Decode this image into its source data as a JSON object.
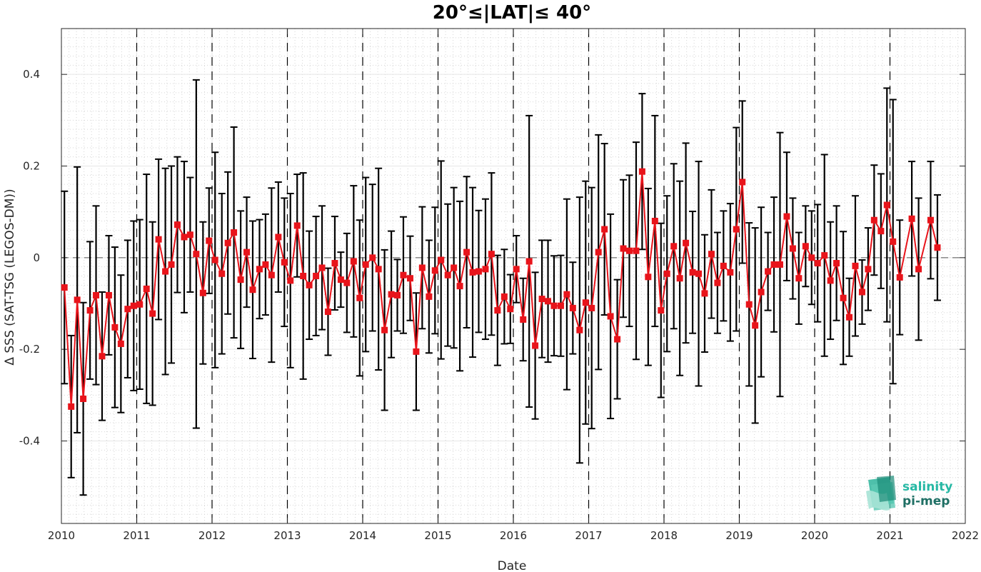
{
  "chart_data": {
    "type": "line",
    "title": "20°≤|LAT|≤ 40°",
    "xlabel": "Date",
    "ylabel": "Δ SSS (SAT-TSG (LEGOS-DM))",
    "xlim": [
      2010,
      2022
    ],
    "ylim": [
      -0.58,
      0.5
    ],
    "x_ticks": [
      2010,
      2011,
      2012,
      2013,
      2014,
      2015,
      2016,
      2017,
      2018,
      2019,
      2020,
      2021,
      2022
    ],
    "y_ticks": [
      -0.4,
      -0.2,
      0,
      0.2,
      0.4
    ],
    "y_tick_labels": [
      "-0.4",
      "-0.2",
      "0",
      "0.2",
      "0.4"
    ],
    "grid": true,
    "year_dividers": [
      2011,
      2012,
      2013,
      2014,
      2015,
      2016,
      2017,
      2018,
      2019,
      2020,
      2021
    ],
    "zero_line": 0,
    "series": [
      {
        "color": "#e8141b",
        "errorbar_color": "#000000",
        "x": [
          2010.04,
          2010.13,
          2010.21,
          2010.29,
          2010.38,
          2010.46,
          2010.54,
          2010.63,
          2010.71,
          2010.79,
          2010.88,
          2010.96,
          2011.04,
          2011.13,
          2011.21,
          2011.29,
          2011.38,
          2011.46,
          2011.54,
          2011.63,
          2011.71,
          2011.79,
          2011.88,
          2011.96,
          2012.04,
          2012.13,
          2012.21,
          2012.29,
          2012.38,
          2012.46,
          2012.54,
          2012.63,
          2012.71,
          2012.79,
          2012.88,
          2012.96,
          2013.04,
          2013.13,
          2013.21,
          2013.29,
          2013.38,
          2013.46,
          2013.54,
          2013.63,
          2013.71,
          2013.79,
          2013.88,
          2013.96,
          2014.04,
          2014.13,
          2014.21,
          2014.29,
          2014.38,
          2014.46,
          2014.54,
          2014.63,
          2014.71,
          2014.79,
          2014.88,
          2014.96,
          2015.04,
          2015.13,
          2015.21,
          2015.29,
          2015.38,
          2015.46,
          2015.54,
          2015.63,
          2015.71,
          2015.79,
          2015.88,
          2015.96,
          2016.04,
          2016.13,
          2016.21,
          2016.29,
          2016.38,
          2016.46,
          2016.54,
          2016.63,
          2016.71,
          2016.79,
          2016.88,
          2016.96,
          2017.04,
          2017.13,
          2017.21,
          2017.29,
          2017.38,
          2017.46,
          2017.54,
          2017.63,
          2017.71,
          2017.79,
          2017.88,
          2017.96,
          2018.04,
          2018.13,
          2018.21,
          2018.29,
          2018.38,
          2018.46,
          2018.54,
          2018.63,
          2018.71,
          2018.79,
          2018.88,
          2018.96,
          2019.04,
          2019.13,
          2019.21,
          2019.29,
          2019.38,
          2019.46,
          2019.54,
          2019.63,
          2019.71,
          2019.79,
          2019.88,
          2019.96,
          2020.04,
          2020.13,
          2020.21,
          2020.29,
          2020.38,
          2020.46,
          2020.54,
          2020.63,
          2020.71,
          2020.79,
          2020.88,
          2020.96,
          2021.04,
          2021.13,
          2021.29,
          2021.38,
          2021.54,
          2021.63
        ],
        "y": [
          -0.065,
          -0.325,
          -0.092,
          -0.308,
          -0.115,
          -0.082,
          -0.215,
          -0.082,
          -0.152,
          -0.188,
          -0.112,
          -0.105,
          -0.102,
          -0.068,
          -0.122,
          0.04,
          -0.03,
          -0.015,
          0.072,
          0.045,
          0.05,
          0.008,
          -0.077,
          0.037,
          -0.005,
          -0.035,
          0.032,
          0.055,
          -0.048,
          0.012,
          -0.07,
          -0.025,
          -0.015,
          -0.038,
          0.045,
          -0.01,
          -0.05,
          0.07,
          -0.04,
          -0.06,
          -0.04,
          -0.022,
          -0.118,
          -0.012,
          -0.048,
          -0.055,
          -0.008,
          -0.088,
          -0.015,
          0.0,
          -0.025,
          -0.158,
          -0.08,
          -0.082,
          -0.038,
          -0.045,
          -0.205,
          -0.022,
          -0.085,
          -0.028,
          -0.005,
          -0.038,
          -0.022,
          -0.062,
          0.012,
          -0.032,
          -0.03,
          -0.025,
          0.008,
          -0.115,
          -0.085,
          -0.112,
          -0.025,
          -0.135,
          -0.008,
          -0.192,
          -0.09,
          -0.095,
          -0.105,
          -0.105,
          -0.08,
          -0.11,
          -0.158,
          -0.098,
          -0.11,
          0.012,
          0.062,
          -0.128,
          -0.178,
          0.02,
          0.015,
          0.015,
          0.188,
          -0.042,
          0.08,
          -0.115,
          -0.035,
          0.025,
          -0.045,
          0.032,
          -0.032,
          -0.035,
          -0.078,
          0.008,
          -0.055,
          -0.018,
          -0.032,
          0.062,
          0.165,
          -0.102,
          -0.148,
          -0.075,
          -0.03,
          -0.015,
          -0.015,
          0.09,
          0.02,
          -0.045,
          0.025,
          0.0,
          -0.012,
          0.005,
          -0.05,
          -0.012,
          -0.088,
          -0.13,
          -0.018,
          -0.075,
          -0.025,
          0.082,
          0.058,
          0.115,
          0.035,
          -0.043,
          0.085,
          -0.025,
          0.082,
          0.022
        ],
        "err": [
          0.21,
          0.155,
          0.29,
          0.21,
          0.15,
          0.195,
          0.14,
          0.13,
          0.175,
          0.15,
          0.15,
          0.185,
          0.185,
          0.25,
          0.2,
          0.175,
          0.225,
          0.215,
          0.148,
          0.165,
          0.125,
          0.38,
          0.155,
          0.115,
          0.235,
          0.175,
          0.155,
          0.23,
          0.15,
          0.12,
          0.15,
          0.108,
          0.11,
          0.19,
          0.12,
          0.14,
          0.19,
          0.112,
          0.225,
          0.118,
          0.13,
          0.135,
          0.095,
          0.102,
          0.06,
          0.108,
          0.165,
          0.17,
          0.19,
          0.16,
          0.22,
          0.175,
          0.138,
          0.078,
          0.127,
          0.092,
          0.128,
          0.133,
          0.123,
          0.138,
          0.216,
          0.155,
          0.175,
          0.185,
          0.165,
          0.185,
          0.133,
          0.153,
          0.177,
          0.12,
          0.103,
          0.075,
          0.073,
          0.09,
          0.318,
          0.16,
          0.128,
          0.133,
          0.109,
          0.11,
          0.208,
          0.1,
          0.29,
          0.265,
          0.263,
          0.256,
          0.187,
          0.223,
          0.13,
          0.15,
          0.165,
          0.237,
          0.17,
          0.193,
          0.23,
          0.19,
          0.17,
          0.18,
          0.212,
          0.218,
          0.133,
          0.245,
          0.128,
          0.14,
          0.11,
          0.12,
          0.15,
          0.222,
          0.177,
          0.178,
          0.213,
          0.185,
          0.085,
          0.147,
          0.288,
          0.14,
          0.11,
          0.1,
          0.088,
          0.102,
          0.128,
          0.22,
          0.128,
          0.125,
          0.145,
          0.085,
          0.153,
          0.07,
          0.09,
          0.12,
          0.125,
          0.255,
          0.31,
          0.125,
          0.125,
          0.155,
          0.128,
          0.115
        ]
      }
    ]
  },
  "logo": {
    "line1": "salinity",
    "line2": "pi-mep",
    "color1": "#26b8a4",
    "color2": "#1f6f64"
  }
}
